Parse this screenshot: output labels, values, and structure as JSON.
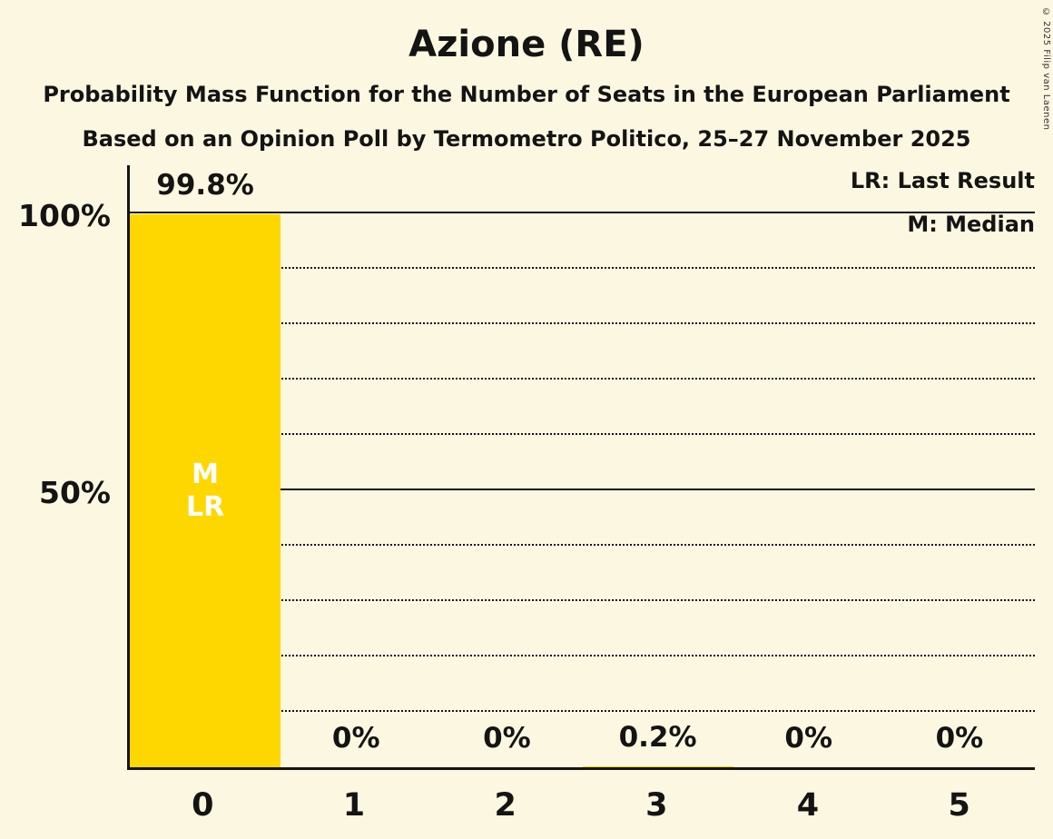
{
  "title": "Azione (RE)",
  "subtitle1": "Probability Mass Function for the Number of Seats in the European Parliament",
  "subtitle2": "Based on an Opinion Poll by Termometro Politico, 25–27 November 2025",
  "copyright": "© 2025 Filip van Laenen",
  "legend": {
    "last_result": "LR: Last Result",
    "median": "M: Median"
  },
  "colors": {
    "background": "#FCF7E1",
    "bar": "#FFD700",
    "text": "#141414",
    "bar_annotation": "#FFFFFF"
  },
  "chart_data": {
    "type": "bar",
    "title": "Azione (RE)",
    "categories": [
      "0",
      "1",
      "2",
      "3",
      "4",
      "5"
    ],
    "values": [
      99.8,
      0,
      0,
      0.2,
      0,
      0
    ],
    "value_labels": [
      "99.8%",
      "0%",
      "0%",
      "0.2%",
      "0%",
      "0%"
    ],
    "bar_annotations": [
      [
        "M",
        "LR"
      ],
      [],
      [],
      [],
      [],
      []
    ],
    "y_ticks": [
      {
        "label": "100%",
        "value": 100
      },
      {
        "label": "50%",
        "value": 50
      }
    ],
    "solid_gridlines": [
      100,
      50
    ],
    "dotted_gridlines": [
      90,
      80,
      70,
      60,
      40,
      30,
      20,
      10
    ],
    "ylim": [
      0,
      100
    ],
    "legend_position": "top-right",
    "median_seats": "0",
    "last_result_seats": "0"
  }
}
